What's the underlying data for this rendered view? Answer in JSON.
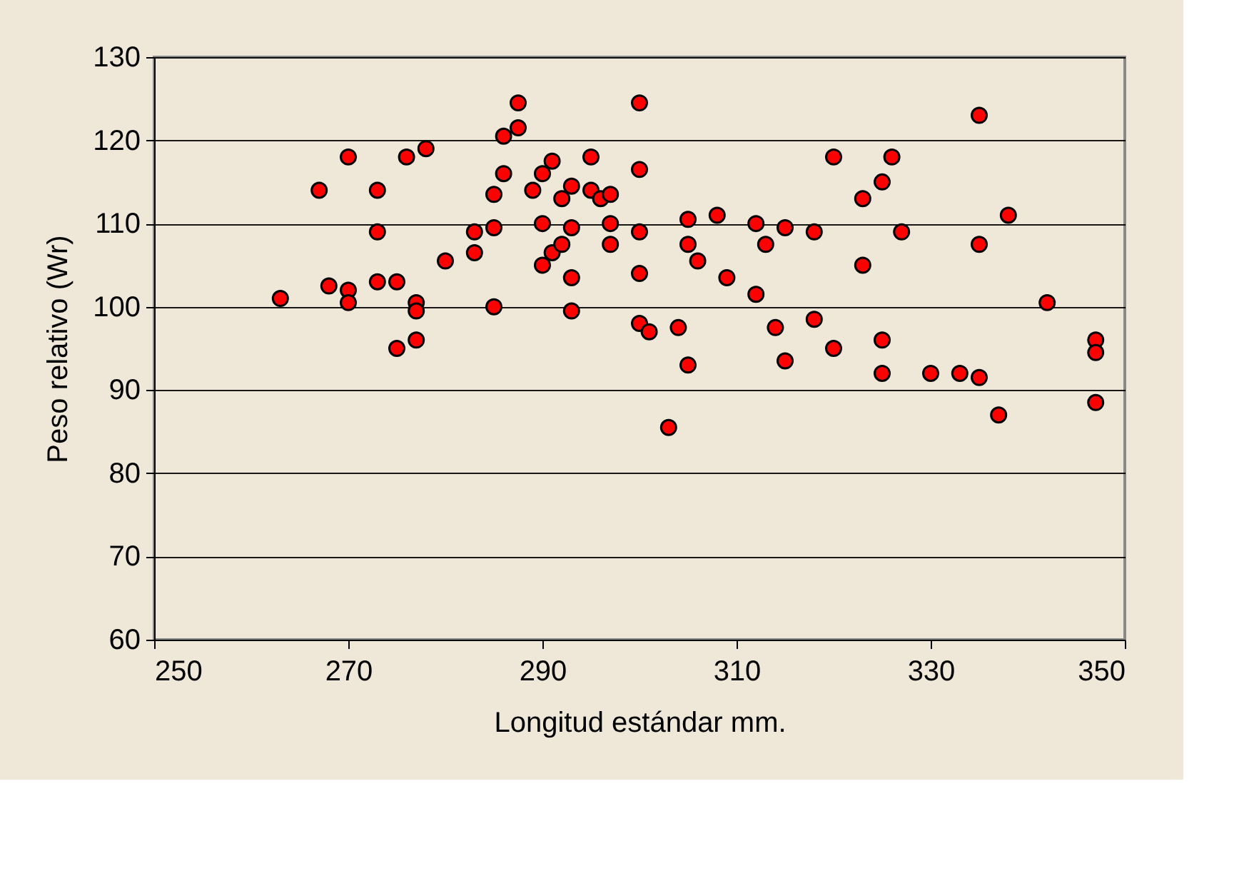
{
  "chart_data": {
    "type": "scatter",
    "xlabel": "Longitud estándar mm.",
    "ylabel": "Peso relativo (Wr)",
    "xlim": [
      250,
      350
    ],
    "xticks": [
      250,
      270,
      290,
      310,
      330,
      350
    ],
    "ylim": [
      60,
      130
    ],
    "yticks": [
      60,
      70,
      80,
      90,
      100,
      110,
      120,
      130
    ],
    "grid": "y",
    "marker": "circle",
    "legend": false,
    "series": [
      {
        "color": "#ff0000",
        "x": [
          263,
          267,
          268,
          270,
          270,
          270,
          273,
          273,
          273,
          275,
          275,
          276,
          277,
          277,
          277,
          278,
          280,
          283,
          283,
          285,
          285,
          285,
          286,
          286,
          287.5,
          287.5,
          289,
          290,
          290,
          290,
          291,
          291,
          292,
          292,
          293,
          293,
          293,
          293,
          295,
          295,
          296,
          297,
          297,
          297,
          300,
          300,
          300,
          300,
          300,
          301,
          303,
          304,
          305,
          305,
          305,
          306,
          308,
          309,
          312,
          312,
          313,
          314,
          315,
          315,
          318,
          318,
          320,
          320,
          323,
          323,
          325,
          325,
          325,
          326,
          327,
          330,
          333,
          335,
          335,
          335,
          337,
          338,
          342,
          347,
          347,
          347
        ],
        "values": [
          101,
          114,
          102.5,
          118,
          102,
          100.5,
          114,
          109,
          103,
          103,
          95,
          118,
          100.5,
          99.5,
          96,
          119,
          105.5,
          109,
          106.5,
          113.5,
          109.5,
          100,
          120.5,
          116,
          121.5,
          124.5,
          114,
          116,
          110,
          105,
          117.5,
          106.5,
          113,
          107.5,
          114.5,
          109.5,
          103.5,
          99.5,
          118,
          114,
          113,
          113.5,
          110,
          107.5,
          124.5,
          116.5,
          109,
          104,
          98,
          97,
          85.5,
          97.5,
          110.5,
          107.5,
          93,
          105.5,
          111,
          103.5,
          110,
          101.5,
          107.5,
          97.5,
          109.5,
          93.5,
          109,
          98.5,
          118,
          95,
          113,
          105,
          115,
          96,
          92,
          118,
          109,
          92,
          92,
          123,
          107.5,
          91.5,
          87,
          111,
          100.5,
          96,
          94.5,
          88.5
        ]
      }
    ]
  }
}
